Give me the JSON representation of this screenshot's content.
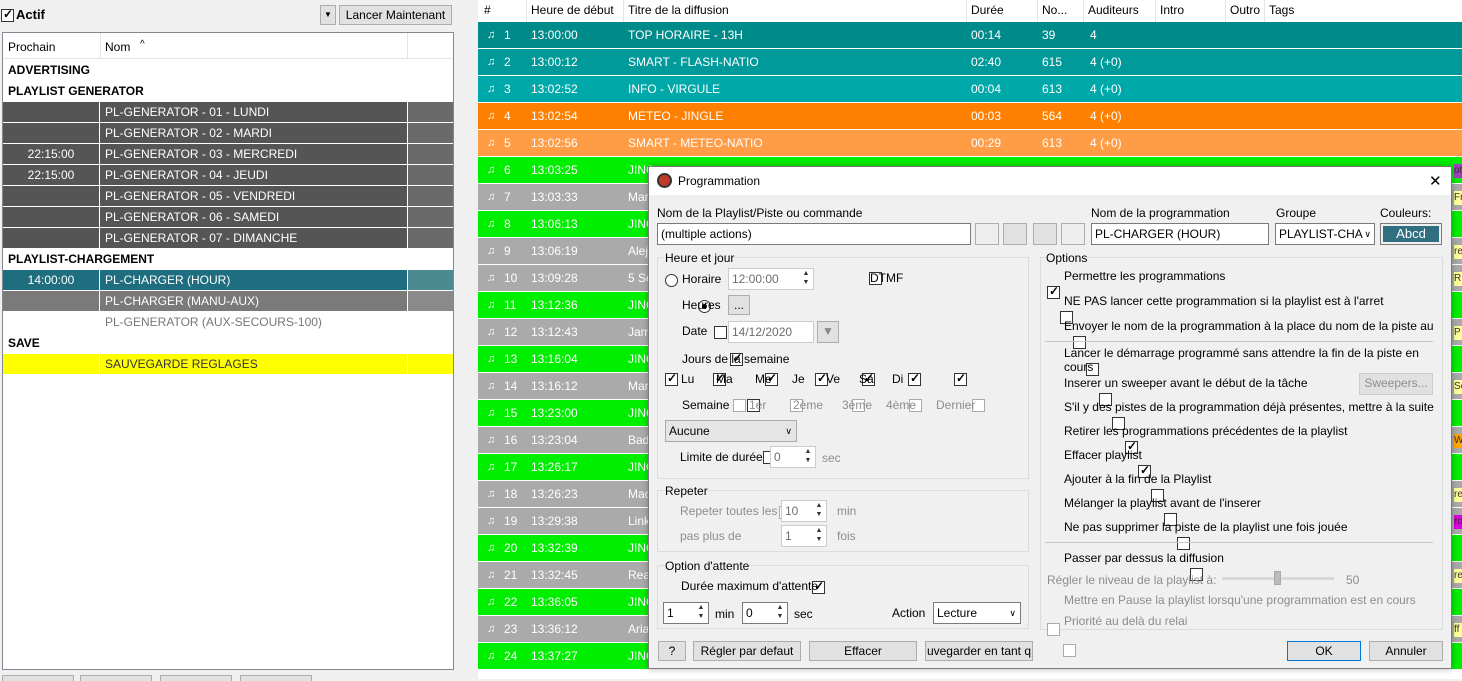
{
  "left": {
    "actif_label": "Actif",
    "actif_checked": true,
    "dropdown_arrow": "▼",
    "launch_button": "Lancer Maintenant",
    "columns": {
      "prochain": "Prochain",
      "nom": "Nom",
      "sort_indicator": "^"
    },
    "rows": [
      {
        "kind": "group",
        "label": "ADVERTISING"
      },
      {
        "kind": "group",
        "label": "PLAYLIST GENERATOR"
      },
      {
        "kind": "item",
        "time": "",
        "name": "PL-GENERATOR - 01 - LUNDI",
        "style": "dark"
      },
      {
        "kind": "item",
        "time": "",
        "name": "PL-GENERATOR - 02 - MARDI",
        "style": "dark"
      },
      {
        "kind": "item",
        "time": "22:15:00",
        "name": "PL-GENERATOR - 03 - MERCREDI",
        "style": "dark"
      },
      {
        "kind": "item",
        "time": "22:15:00",
        "name": "PL-GENERATOR - 04 - JEUDI",
        "style": "dark"
      },
      {
        "kind": "item",
        "time": "",
        "name": "PL-GENERATOR - 05 - VENDREDI",
        "style": "dark"
      },
      {
        "kind": "item",
        "time": "",
        "name": "PL-GENERATOR - 06 - SAMEDI",
        "style": "dark"
      },
      {
        "kind": "item",
        "time": "",
        "name": "PL-GENERATOR - 07 - DIMANCHE",
        "style": "dark"
      },
      {
        "kind": "group",
        "label": "PLAYLIST-CHARGEMENT"
      },
      {
        "kind": "item",
        "time": "14:00:00",
        "name": "PL-CHARGER (HOUR)",
        "style": "selected"
      },
      {
        "kind": "item",
        "time": "",
        "name": "PL-CHARGER (MANU-AUX)",
        "style": "gray"
      },
      {
        "kind": "item",
        "time": "",
        "name": "PL-GENERATOR (AUX-SECOURS-100)",
        "style": "white"
      },
      {
        "kind": "group",
        "label": "SAVE"
      },
      {
        "kind": "item",
        "time": "",
        "name": "SAUVEGARDE REGLAGES",
        "style": "yellow"
      }
    ]
  },
  "grid": {
    "headers": [
      "#",
      "Heure de début",
      "Titre de la diffusion",
      "Durée",
      "No...",
      "Auditeurs",
      "Intro",
      "Outro",
      "Tags"
    ],
    "rows": [
      {
        "n": "1",
        "time": "13:00:00",
        "title": "TOP HORAIRE - 13H",
        "dur": "00:14",
        "no": "39",
        "aud": "4",
        "color": "#008b8b"
      },
      {
        "n": "2",
        "time": "13:00:12",
        "title": "SMART - FLASH-NATIO",
        "dur": "02:40",
        "no": "615",
        "aud": "4 (+0)",
        "color": "#009a9a"
      },
      {
        "n": "3",
        "time": "13:02:52",
        "title": "INFO - VIRGULE",
        "dur": "00:04",
        "no": "613",
        "aud": "4 (+0)",
        "color": "#00a9a9"
      },
      {
        "n": "4",
        "time": "13:02:54",
        "title": "METEO - JINGLE",
        "dur": "00:03",
        "no": "564",
        "aud": "4 (+0)",
        "color": "#ff7f00"
      },
      {
        "n": "5",
        "time": "13:02:56",
        "title": "SMART - METEO-NATIO",
        "dur": "00:29",
        "no": "613",
        "aud": "4 (+0)",
        "color": "#ff9d47"
      },
      {
        "n": "6",
        "time": "13:03:25",
        "title": "JING",
        "color": "#00ee00"
      },
      {
        "n": "7",
        "time": "13:03:33",
        "title": "Mar",
        "color": "#aaaaaa"
      },
      {
        "n": "8",
        "time": "13:06:13",
        "title": "JING",
        "color": "#00ee00"
      },
      {
        "n": "9",
        "time": "13:06:19",
        "title": "Alej",
        "color": "#aaaaaa"
      },
      {
        "n": "10",
        "time": "13:09:28",
        "title": "5 Se",
        "color": "#aaaaaa"
      },
      {
        "n": "11",
        "time": "13:12:36",
        "title": "JING",
        "color": "#00ee00"
      },
      {
        "n": "12",
        "time": "13:12:43",
        "title": "Jam",
        "color": "#aaaaaa"
      },
      {
        "n": "13",
        "time": "13:16:04",
        "title": "JING",
        "color": "#00ee00"
      },
      {
        "n": "14",
        "time": "13:16:12",
        "title": "Mar",
        "color": "#aaaaaa"
      },
      {
        "n": "15",
        "time": "13:23:00",
        "title": "JING",
        "color": "#00ee00"
      },
      {
        "n": "16",
        "time": "13:23:04",
        "title": "Bad",
        "color": "#aaaaaa"
      },
      {
        "n": "17",
        "time": "13:26:17",
        "title": "JING",
        "color": "#00ee00"
      },
      {
        "n": "18",
        "time": "13:26:23",
        "title": "Mac",
        "color": "#aaaaaa"
      },
      {
        "n": "19",
        "time": "13:29:38",
        "title": "Link",
        "color": "#aaaaaa"
      },
      {
        "n": "20",
        "time": "13:32:39",
        "title": "JING",
        "color": "#00ee00"
      },
      {
        "n": "21",
        "time": "13:32:45",
        "title": "Rea",
        "color": "#aaaaaa"
      },
      {
        "n": "22",
        "time": "13:36:05",
        "title": "JING",
        "color": "#00ee00"
      },
      {
        "n": "23",
        "time": "13:36:12",
        "title": "Aria",
        "color": "#aaaaaa"
      },
      {
        "n": "24",
        "time": "13:37:27",
        "title": "JING",
        "color": "#00ee00"
      }
    ],
    "edge_tags": [
      {
        "row": 6,
        "text": "oti",
        "color": "#a040c0"
      },
      {
        "row": 7,
        "text": "Fr",
        "color": "#ffff99"
      },
      {
        "row": 9,
        "text": "re",
        "color": "#ffff99"
      },
      {
        "row": 10,
        "text": "R",
        "color": "#ffff99"
      },
      {
        "row": 12,
        "text": "P",
        "color": "#ffff99"
      },
      {
        "row": 14,
        "text": "Se",
        "color": "#ffff99"
      },
      {
        "row": 16,
        "text": "W",
        "color": "#ffa500"
      },
      {
        "row": 18,
        "text": "re",
        "color": "#ffff99"
      },
      {
        "row": 19,
        "text": "ro",
        "color": "#dd00dd"
      },
      {
        "row": 21,
        "text": "re",
        "color": "#ffff99"
      },
      {
        "row": 23,
        "text": "ff",
        "color": "#ffff99"
      }
    ]
  },
  "dialog": {
    "title": "Programmation",
    "close": "✕",
    "name_label": "Nom de la Playlist/Piste ou commande",
    "name_value": "(multiple actions)",
    "prog_name_label": "Nom de la programmation",
    "prog_name_value": "PL-CHARGER (HOUR)",
    "groupe_label": "Groupe",
    "groupe_value": "PLAYLIST-CHA",
    "couleurs_label": "Couleurs:",
    "couleurs_swatch": "Abcd",
    "swatch_color": "#2f6f80",
    "heure_jour": {
      "legend": "Heure et jour",
      "horaire_label": "Horaire",
      "horaire_value": "12:00:00",
      "dtmf_label": "DTMF",
      "heures_label": "Heures",
      "heures_btn": "...",
      "date_label": "Date",
      "date_value": "14/12/2020",
      "jours_label": "Jours de la semaine",
      "days": [
        "Lu",
        "Ma",
        "Me",
        "Je",
        "Ve",
        "Sa",
        "Di"
      ],
      "semaine_label": "Semaine",
      "weeks": [
        "1er",
        "2ème",
        "3ème",
        "4ème",
        "Dernier"
      ],
      "aucune_value": "Aucune",
      "limite_label": "Limite de durée",
      "limite_value": "0",
      "limite_unit": "sec"
    },
    "repeter": {
      "legend": "Repeter",
      "toutes_label": "Repeter toutes les",
      "toutes_value": "10",
      "toutes_unit": "min",
      "plus_label": "pas plus de",
      "plus_value": "1",
      "plus_unit": "fois"
    },
    "attente": {
      "legend": "Option d'attente",
      "duree_label": "Durée maximum d'attente",
      "min_value": "1",
      "min_unit": "min",
      "sec_value": "0",
      "sec_unit": "sec",
      "action_label": "Action",
      "action_value": "Lecture"
    },
    "options": {
      "legend": "Options",
      "items": [
        {
          "label": "Permettre les programmations",
          "checked": true
        },
        {
          "label": "NE PAS lancer cette programmation si la playlist est à l'arret",
          "checked": false
        },
        {
          "label": "Envoyer le nom de la programmation à la place du nom de la piste au",
          "checked": false
        },
        {
          "label": "Lancer le démarrage programmé sans attendre la fin de la piste en cours",
          "checked": false
        },
        {
          "label": "Inserer un sweeper avant le début de la tâche",
          "checked": false
        },
        {
          "label": "S'il y des pistes de la programmation déjà présentes, mettre à la suite",
          "checked": false
        },
        {
          "label": "Retirer les programmations précédentes de la playlist",
          "checked": true
        },
        {
          "label": "Effacer playlist",
          "checked": true
        },
        {
          "label": "Ajouter à la fin de la Playlist",
          "checked": false
        },
        {
          "label": "Mélanger la playlist avant de l'inserer",
          "checked": false
        },
        {
          "label": "Ne pas supprimer la piste de la playlist une fois jouée",
          "checked": false
        },
        {
          "label": "Passer par dessus la diffusion",
          "checked": false
        }
      ],
      "sweepers_btn": "Sweepers...",
      "niveau_label": "Régler le niveau de la playlist à:",
      "niveau_value": "50",
      "niveau_fraction": 0.5,
      "pause_label": "Mettre en Pause la playlist lorsqu'une programmation est en cours",
      "priorite_label": "Priorité au delà du relai"
    },
    "buttons": {
      "help": "?",
      "defaut": "Régler par defaut",
      "effacer": "Effacer",
      "sauvegarder": "uvegarder en tant q",
      "ok": "OK",
      "annuler": "Annuler"
    }
  }
}
